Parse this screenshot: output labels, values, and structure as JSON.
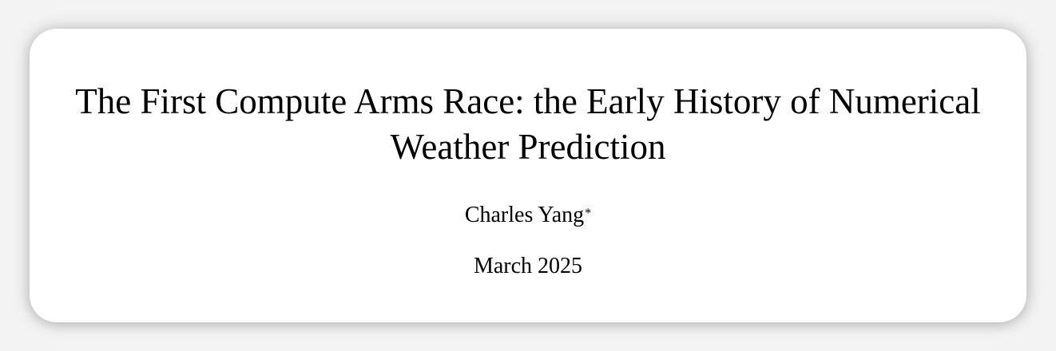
{
  "paper": {
    "title_line1": "The First Compute Arms Race: the Early History of Numerical",
    "title_line2": "Weather Prediction",
    "author": "Charles Yang",
    "author_mark": "*",
    "date": "March 2025"
  }
}
